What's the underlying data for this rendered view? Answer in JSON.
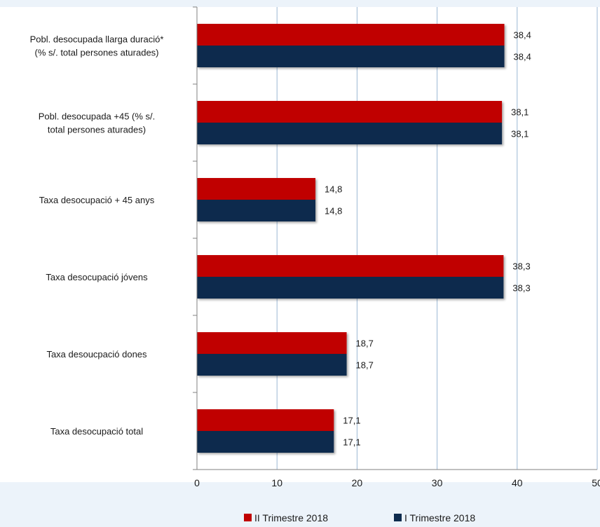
{
  "chart_data": {
    "type": "bar",
    "orientation": "horizontal",
    "categories": [
      [
        "Pobl. desocupada llarga duració*",
        "(% s/. total persones aturades)"
      ],
      [
        "Pobl. desocupada +45 (% s/.",
        "total persones aturades)"
      ],
      [
        "Taxa desocupació + 45 anys"
      ],
      [
        "Taxa desocupació jóvens"
      ],
      [
        "Taxa desoucpació dones"
      ],
      [
        "Taxa desocupació total"
      ]
    ],
    "series": [
      {
        "name": "II Trimestre 2018",
        "color": "#c00000",
        "values": [
          38.4,
          38.1,
          14.8,
          38.3,
          18.7,
          17.1
        ],
        "labels": [
          "38,4",
          "38,1",
          "14,8",
          "38,3",
          "18,7",
          "17,1"
        ]
      },
      {
        "name": "I Trimestre 2018",
        "color": "#0d2b4e",
        "values": [
          38.4,
          38.1,
          14.8,
          38.3,
          18.7,
          17.1
        ],
        "labels": [
          "38,4",
          "38,1",
          "14,8",
          "38,3",
          "18,7",
          "17,1"
        ]
      }
    ],
    "xlim": [
      0,
      50
    ],
    "xticks": [
      0,
      10,
      20,
      30,
      40,
      50
    ],
    "grid": "vertical",
    "legend": "bottom-center",
    "colors": {
      "background": "#ecf3fa",
      "plot_area": "#ffffff",
      "grid": "#9bb7d4",
      "axis": "#808080"
    }
  }
}
